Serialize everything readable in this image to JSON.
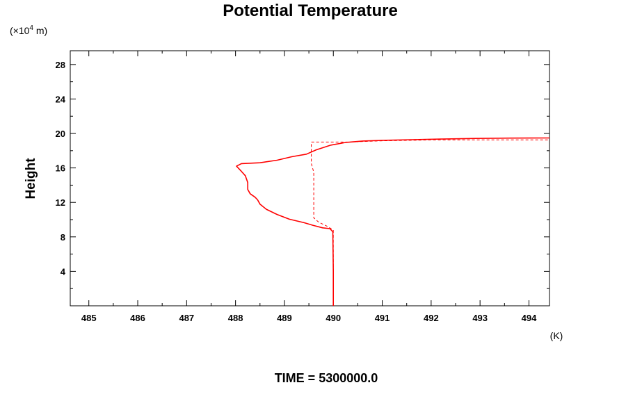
{
  "chart_data": {
    "type": "line",
    "title": "Potential Temperature",
    "ylabel": "Height",
    "yunit_pre": "(×10",
    "yunit_exp": "4",
    "yunit_post": " m)",
    "xunit": "(K)",
    "footer": "TIME = 5300000.0",
    "xlim": [
      484.62,
      494.42
    ],
    "ylim": [
      0,
      29.6
    ],
    "xticks": [
      485,
      486,
      487,
      488,
      489,
      490,
      491,
      492,
      493,
      494
    ],
    "yticks": [
      4,
      8,
      12,
      16,
      20,
      24,
      28
    ],
    "grid": false,
    "series_color": "#ff0000",
    "series": [
      {
        "style": "solid",
        "points": [
          [
            490.0,
            0.0
          ],
          [
            490.0,
            4.0
          ],
          [
            489.99,
            8.6
          ],
          [
            489.93,
            8.95
          ],
          [
            489.78,
            9.05
          ],
          [
            489.58,
            9.35
          ],
          [
            489.4,
            9.65
          ],
          [
            489.1,
            10.05
          ],
          [
            488.85,
            10.6
          ],
          [
            488.63,
            11.2
          ],
          [
            488.5,
            11.8
          ],
          [
            488.45,
            12.3
          ],
          [
            488.4,
            12.6
          ],
          [
            488.3,
            13.0
          ],
          [
            488.25,
            13.5
          ],
          [
            488.25,
            14.3
          ],
          [
            488.2,
            15.1
          ],
          [
            488.12,
            15.6
          ],
          [
            488.02,
            16.2
          ],
          [
            488.12,
            16.5
          ],
          [
            488.5,
            16.6
          ],
          [
            488.85,
            16.9
          ],
          [
            489.15,
            17.3
          ],
          [
            489.45,
            17.6
          ],
          [
            489.65,
            18.1
          ],
          [
            489.95,
            18.65
          ],
          [
            490.25,
            18.95
          ],
          [
            490.6,
            19.12
          ],
          [
            491.0,
            19.2
          ],
          [
            491.6,
            19.28
          ],
          [
            492.2,
            19.35
          ],
          [
            492.9,
            19.42
          ],
          [
            493.6,
            19.46
          ],
          [
            494.42,
            19.48
          ]
        ]
      },
      {
        "style": "dashed",
        "points": [
          [
            490.0,
            0.0
          ],
          [
            490.0,
            8.8
          ],
          [
            489.85,
            9.3
          ],
          [
            489.7,
            9.7
          ],
          [
            489.6,
            10.2
          ],
          [
            489.6,
            11.5
          ],
          [
            489.6,
            15.5
          ],
          [
            489.55,
            16.5
          ],
          [
            489.55,
            19.0
          ],
          [
            490.3,
            19.0
          ],
          [
            491.0,
            19.15
          ],
          [
            492.0,
            19.25
          ],
          [
            493.0,
            19.25
          ],
          [
            494.42,
            19.25
          ]
        ]
      }
    ]
  }
}
